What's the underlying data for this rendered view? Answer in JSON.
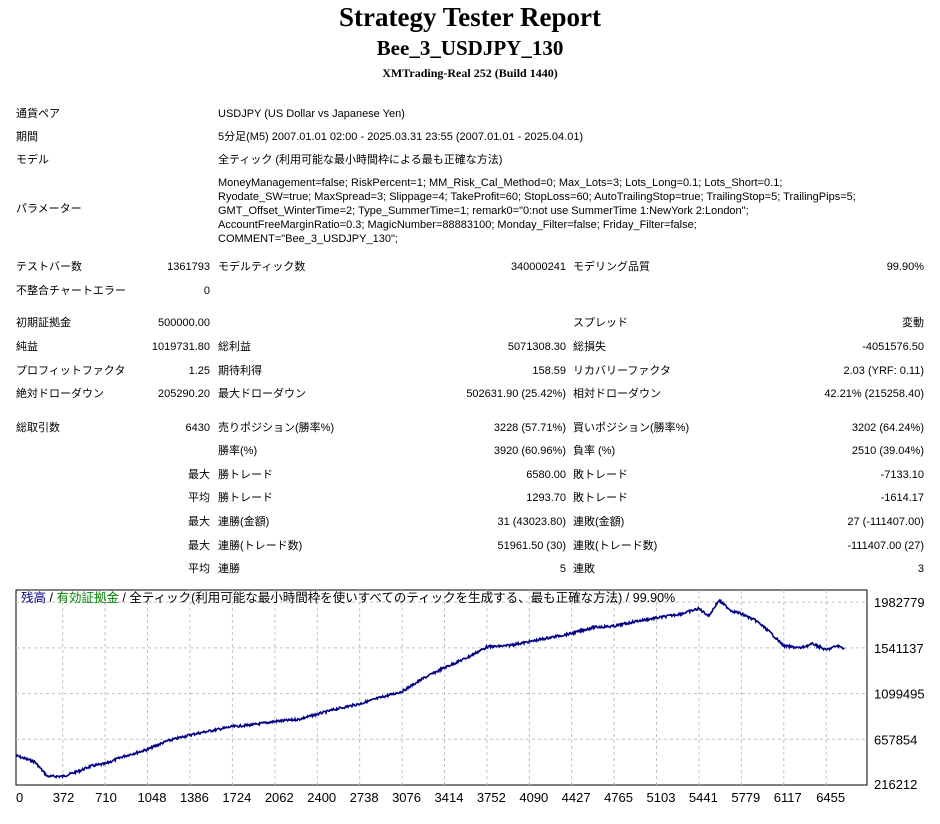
{
  "header": {
    "title": "Strategy Tester Report",
    "expert": "Bee_3_USDJPY_130",
    "server": "XMTrading-Real 252 (Build 1440)"
  },
  "info": {
    "symbol_label": "通貨ペア",
    "symbol_value": "USDJPY (US Dollar vs Japanese Yen)",
    "period_label": "期間",
    "period_value": "5分足(M5) 2007.01.01 02:00 - 2025.03.31 23:55 (2007.01.01 - 2025.04.01)",
    "model_label": "モデル",
    "model_value": "全ティック (利用可能な最小時間枠による最も正確な方法)",
    "params_label": "パラメーター",
    "params_lines": [
      "MoneyManagement=false; RiskPercent=1; MM_Risk_Cal_Method=0; Max_Lots=3; Lots_Long=0.1; Lots_Short=0.1;",
      "Ryodate_SW=true; MaxSpread=3; Slippage=4; TakeProfit=60; StopLoss=60; AutoTrailingStop=true; TrailingStop=5; TrailingPips=5;",
      "GMT_Offset_WinterTime=2; Type_SummerTime=1; remark0=\"0:not use SummerTime 1:NewYork 2:London\";",
      "AccountFreeMarginRatio=0.3; MagicNumber=88883100; Monday_Filter=false; Friday_Filter=false;",
      "COMMENT=\"Bee_3_USDJPY_130\";"
    ]
  },
  "stats": {
    "bars_label": "テストバー数",
    "bars_value": "1361793",
    "ticks_label": "モデルティック数",
    "ticks_value": "340000241",
    "quality_label": "モデリング品質",
    "quality_value": "99.90%",
    "mismatch_label": "不整合チャートエラー",
    "mismatch_value": "0",
    "deposit_label": "初期証拠金",
    "deposit_value": "500000.00",
    "spread_label": "スプレッド",
    "spread_value": "変動",
    "net_label": "純益",
    "net_value": "1019731.80",
    "gross_profit_label": "総利益",
    "gross_profit_value": "5071308.30",
    "gross_loss_label": "総損失",
    "gross_loss_value": "-4051576.50",
    "pf_label": "プロフィットファクタ",
    "pf_value": "1.25",
    "expected_label": "期待利得",
    "expected_value": "158.59",
    "recovery_label": "リカバリーファクタ",
    "recovery_value": "2.03 (YRF: 0.11)",
    "abs_dd_label": "絶対ドローダウン",
    "abs_dd_value": "205290.20",
    "max_dd_label": "最大ドローダウン",
    "max_dd_value": "502631.90 (25.42%)",
    "rel_dd_label": "相対ドローダウン",
    "rel_dd_value": "42.21% (215258.40)",
    "total_trades_label": "総取引数",
    "total_trades_value": "6430",
    "short_label": "売りポジション(勝率%)",
    "short_value": "3228 (57.71%)",
    "long_label": "買いポジション(勝率%)",
    "long_value": "3202 (64.24%)",
    "win_rate_label": "勝率(%)",
    "win_rate_value": "3920 (60.96%)",
    "loss_rate_label": "負率 (%)",
    "loss_rate_value": "2510 (39.04%)",
    "max_label": "最大",
    "avg_label": "平均",
    "largest_win_label": "勝トレード",
    "largest_win_value": "6580.00",
    "largest_loss_label": "敗トレード",
    "largest_loss_value": "-7133.10",
    "avg_win_label": "勝トレード",
    "avg_win_value": "1293.70",
    "avg_loss_label": "敗トレード",
    "avg_loss_value": "-1614.17",
    "max_consec_wins_label": "連勝(金額)",
    "max_consec_wins_value": "31 (43023.80)",
    "max_consec_losses_label": "連敗(金額)",
    "max_consec_losses_value": "27 (-111407.00)",
    "max_consec_profit_label": "連勝(トレード数)",
    "max_consec_profit_value": "51961.50 (30)",
    "max_consec_loss_label": "連敗(トレード数)",
    "max_consec_loss_value": "-111407.00 (27)",
    "avg_consec_wins_label": "連勝",
    "avg_consec_wins_value": "5",
    "avg_consec_losses_label": "連敗",
    "avg_consec_losses_value": "3"
  },
  "chart_legend": {
    "balance": "残高",
    "sep1": " / ",
    "equity": "有効証拠金",
    "rest": " / 全ティック(利用可能な最小時間枠を使いすべてのティックを生成する、最も正確な方法) / 99.90%"
  },
  "colors": {
    "balance": "#000080",
    "equity": "#008000",
    "grid": "#c0c0c0"
  },
  "chart_data": {
    "type": "line",
    "x_ticks": [
      "0",
      "372",
      "710",
      "1048",
      "1386",
      "1724",
      "2062",
      "2400",
      "2738",
      "3076",
      "3414",
      "3752",
      "4090",
      "4427",
      "4765",
      "5103",
      "5441",
      "5779",
      "6117",
      "6455"
    ],
    "y_ticks": [
      "1982779",
      "1541137",
      "1099495",
      "657854",
      "216212"
    ],
    "xlim": [
      0,
      6780
    ],
    "ylim": [
      216212,
      2100000
    ],
    "series": [
      {
        "name": "残高",
        "x": [
          0,
          150,
          250,
          372,
          500,
          600,
          710,
          850,
          1048,
          1200,
          1386,
          1550,
          1724,
          1900,
          2062,
          2250,
          2400,
          2550,
          2738,
          2900,
          3076,
          3250,
          3414,
          3600,
          3752,
          3900,
          4090,
          4250,
          4427,
          4600,
          4765,
          4950,
          5103,
          5300,
          5441,
          5520,
          5600,
          5700,
          5779,
          5900,
          6000,
          6117,
          6250,
          6350,
          6455,
          6540,
          6600
        ],
        "y": [
          500000,
          440000,
          300000,
          300000,
          350000,
          400000,
          420000,
          490000,
          560000,
          640000,
          700000,
          740000,
          780000,
          800000,
          830000,
          850000,
          900000,
          950000,
          1000000,
          1060000,
          1120000,
          1250000,
          1350000,
          1450000,
          1550000,
          1560000,
          1600000,
          1640000,
          1680000,
          1740000,
          1750000,
          1800000,
          1830000,
          1870000,
          1920000,
          1850000,
          2000000,
          1900000,
          1870000,
          1800000,
          1700000,
          1560000,
          1540000,
          1580000,
          1520000,
          1560000,
          1540000
        ]
      }
    ]
  }
}
